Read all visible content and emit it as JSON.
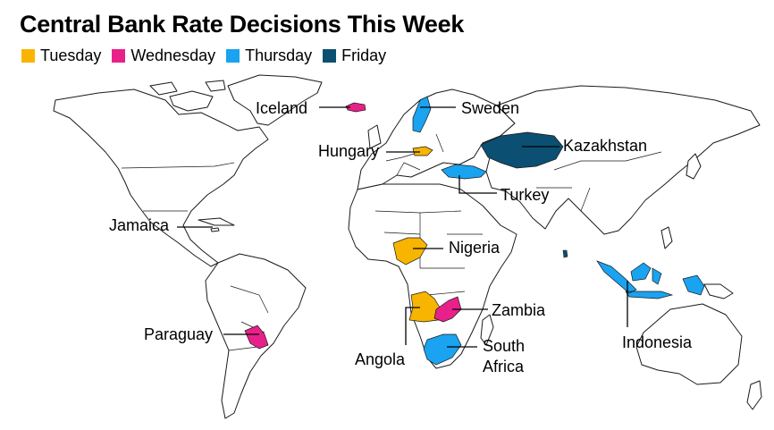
{
  "title": "Central Bank Rate Decisions This Week",
  "legend": [
    {
      "label": "Tuesday",
      "color": "#f7b500"
    },
    {
      "label": "Wednesday",
      "color": "#e8208a"
    },
    {
      "label": "Thursday",
      "color": "#1aa3f0"
    },
    {
      "label": "Friday",
      "color": "#0b4f72"
    }
  ],
  "labels": {
    "iceland": "Iceland",
    "sweden": "Sweden",
    "hungary": "Hungary",
    "kazakhstan": "Kazakhstan",
    "turkey": "Turkey",
    "jamaica": "Jamaica",
    "nigeria": "Nigeria",
    "zambia": "Zambia",
    "paraguay": "Paraguay",
    "angola": "Angola",
    "south_africa_line1": "South",
    "south_africa_line2": "Africa",
    "indonesia": "Indonesia"
  }
}
